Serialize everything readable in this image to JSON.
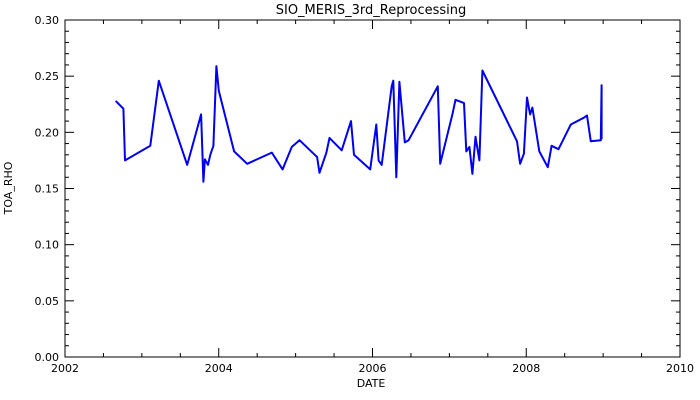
{
  "chart_data": {
    "type": "line",
    "title": "SIO_MERIS_3rd_Reprocessing",
    "xlabel": "DATE",
    "ylabel": "TOA_RHO",
    "xlim": [
      2002,
      2010
    ],
    "ylim": [
      0.0,
      0.3
    ],
    "x_ticks": [
      "2002",
      "2004",
      "2006",
      "2008",
      "2010"
    ],
    "y_ticks": [
      "0.00",
      "0.05",
      "0.10",
      "0.15",
      "0.20",
      "0.25",
      "0.30"
    ],
    "grid": false,
    "line_color": "#0000ee",
    "series": [
      {
        "x": [
          2002.66,
          2002.76,
          2002.78,
          2003.11,
          2003.22,
          2003.59,
          2003.77,
          2003.8,
          2003.82,
          2003.86,
          2003.89,
          2003.93,
          2003.97,
          2004.0,
          2004.2,
          2004.37,
          2004.69,
          2004.83,
          2004.95,
          2005.05,
          2005.25,
          2005.28,
          2005.31,
          2005.4,
          2005.44,
          2005.6,
          2005.72,
          2005.76,
          2005.97,
          2006.05,
          2006.08,
          2006.12,
          2006.25,
          2006.27,
          2006.31,
          2006.35,
          2006.42,
          2006.47,
          2006.85,
          2006.88,
          2007.04,
          2007.08,
          2007.19,
          2007.22,
          2007.26,
          2007.3,
          2007.34,
          2007.39,
          2007.43,
          2007.88,
          2007.92,
          2007.97,
          2008.01,
          2008.05,
          2008.08,
          2008.17,
          2008.28,
          2008.33,
          2008.42,
          2008.58,
          2008.75,
          2008.79,
          2008.84,
          2008.97,
          2008.98,
          2008.98
        ],
        "y": [
          0.228,
          0.221,
          0.175,
          0.188,
          0.246,
          0.171,
          0.216,
          0.156,
          0.176,
          0.171,
          0.18,
          0.188,
          0.259,
          0.237,
          0.183,
          0.172,
          0.182,
          0.167,
          0.187,
          0.193,
          0.18,
          0.178,
          0.164,
          0.182,
          0.195,
          0.184,
          0.21,
          0.18,
          0.167,
          0.207,
          0.175,
          0.171,
          0.241,
          0.246,
          0.16,
          0.245,
          0.191,
          0.193,
          0.241,
          0.172,
          0.216,
          0.229,
          0.226,
          0.183,
          0.187,
          0.163,
          0.196,
          0.175,
          0.255,
          0.192,
          0.172,
          0.181,
          0.231,
          0.216,
          0.222,
          0.183,
          0.169,
          0.188,
          0.185,
          0.207,
          0.213,
          0.215,
          0.192,
          0.193,
          0.242,
          0.194
        ]
      }
    ]
  }
}
